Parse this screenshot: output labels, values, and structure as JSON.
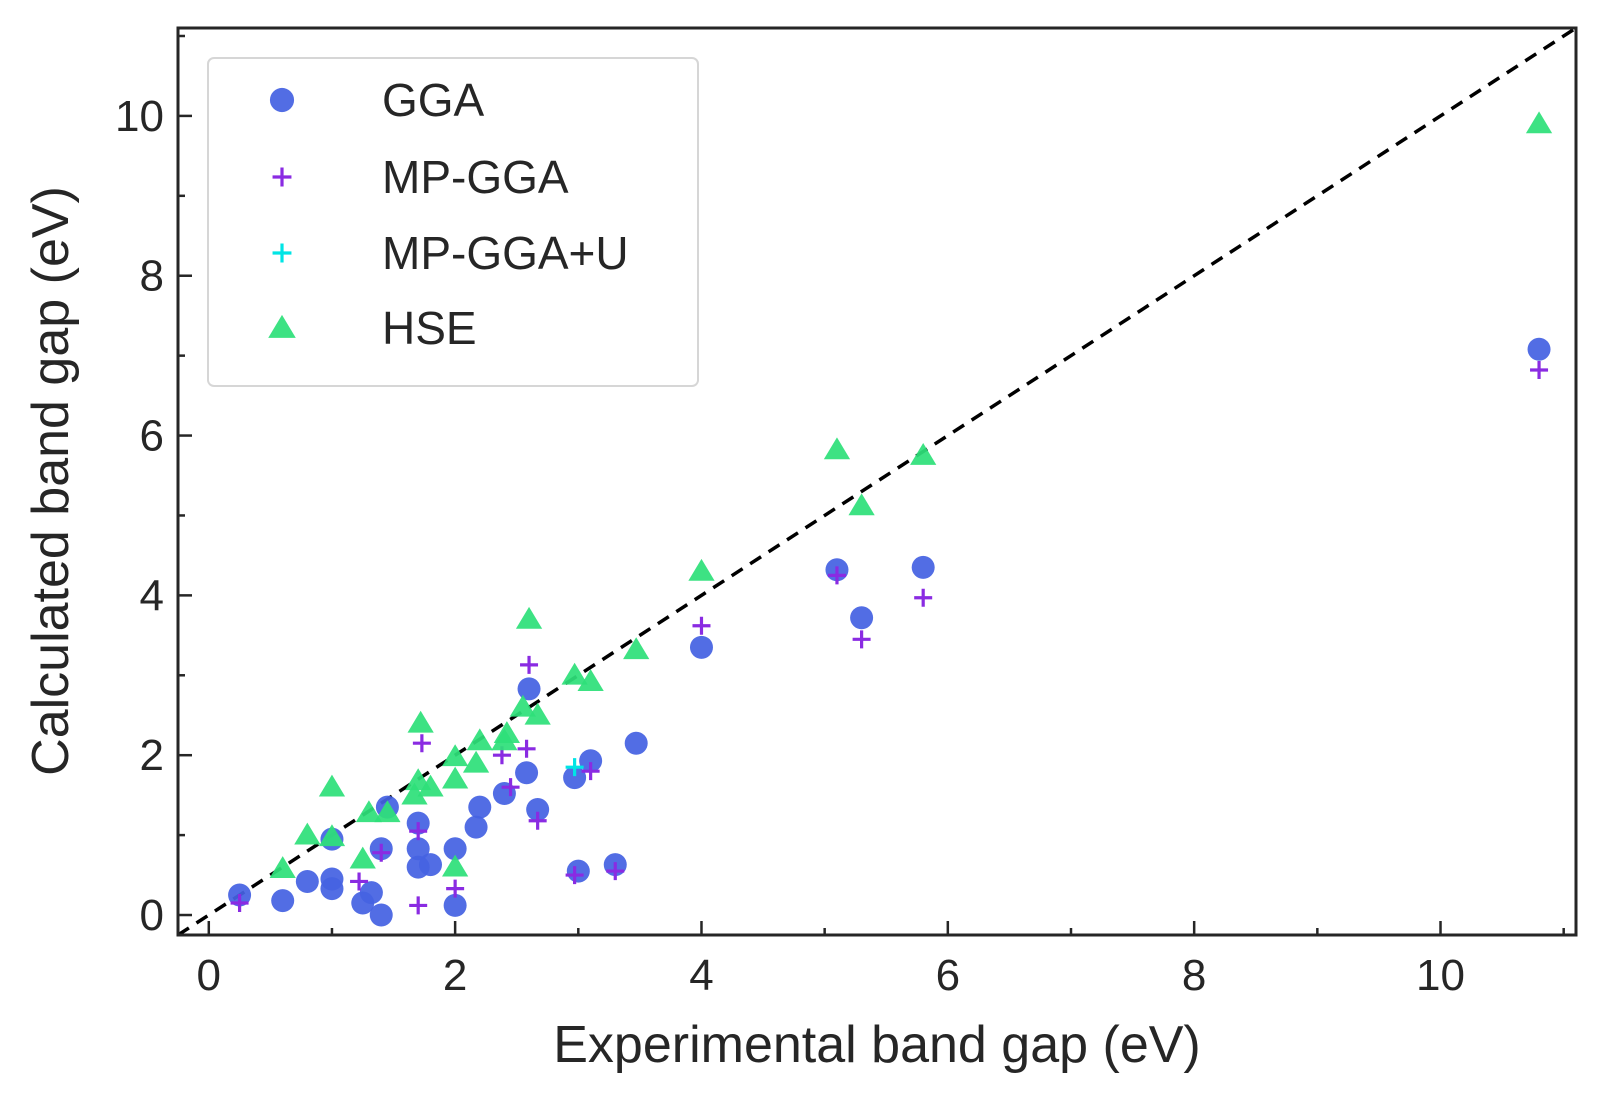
{
  "chart_data": {
    "type": "scatter",
    "title": "",
    "xlabel": "Experimental band gap (eV)",
    "ylabel": "Calculated band gap (eV)",
    "xlim": [
      -0.25,
      11.1
    ],
    "ylim": [
      -0.25,
      11.1
    ],
    "xticks": [
      0,
      2,
      4,
      6,
      8,
      10
    ],
    "yticks": [
      0,
      2,
      4,
      6,
      8,
      10
    ],
    "xtick_labels": [
      "0",
      "2",
      "4",
      "6",
      "8",
      "10"
    ],
    "ytick_labels": [
      "0",
      "2",
      "4",
      "6",
      "8",
      "10"
    ],
    "minor_tick_step": 1,
    "reference_line": {
      "style": "dashed",
      "color": "#000000",
      "from": [
        -0.25,
        -0.25
      ],
      "to": [
        11.1,
        11.1
      ]
    },
    "legend_position": "top-left",
    "series": [
      {
        "name": "GGA",
        "marker": "circle",
        "color": "#4562E2",
        "x": [
          0.25,
          0.6,
          0.8,
          1.0,
          1.0,
          1.0,
          1.25,
          1.32,
          1.4,
          1.4,
          1.45,
          1.7,
          1.7,
          1.7,
          1.8,
          2.0,
          2.0,
          2.17,
          2.2,
          2.4,
          2.58,
          2.6,
          2.67,
          2.97,
          3.0,
          3.1,
          3.3,
          3.47,
          4.0,
          5.1,
          5.3,
          5.8,
          10.8
        ],
        "y": [
          0.25,
          0.18,
          0.42,
          0.33,
          0.45,
          0.95,
          0.15,
          0.28,
          0.0,
          0.83,
          1.35,
          0.6,
          0.83,
          1.15,
          0.63,
          0.12,
          0.83,
          1.1,
          1.35,
          1.52,
          1.78,
          2.83,
          1.32,
          1.72,
          0.55,
          1.93,
          0.63,
          2.15,
          3.35,
          4.32,
          3.72,
          4.35,
          7.08
        ]
      },
      {
        "name": "MP-GGA",
        "marker": "plus",
        "color": "#8A2BE2",
        "x": [
          0.25,
          1.22,
          1.4,
          1.7,
          1.7,
          1.73,
          2.0,
          2.38,
          2.45,
          2.58,
          2.6,
          2.67,
          2.97,
          3.1,
          3.3,
          4.0,
          5.1,
          5.3,
          5.8,
          10.8
        ],
        "y": [
          0.15,
          0.42,
          0.78,
          0.12,
          1.05,
          2.15,
          0.33,
          2.0,
          1.6,
          2.08,
          3.13,
          1.18,
          0.5,
          1.8,
          0.55,
          3.62,
          4.25,
          3.45,
          3.97,
          6.82
        ]
      },
      {
        "name": "MP-GGA+U",
        "marker": "plus",
        "color": "#00E5E5",
        "x": [
          2.97
        ],
        "y": [
          1.85
        ]
      },
      {
        "name": "HSE",
        "marker": "triangle",
        "color": "#2EE07A",
        "x": [
          0.6,
          0.8,
          1.0,
          1.0,
          1.25,
          1.3,
          1.45,
          1.67,
          1.7,
          1.72,
          1.8,
          2.0,
          2.0,
          2.0,
          2.17,
          2.2,
          2.4,
          2.42,
          2.55,
          2.6,
          2.67,
          2.97,
          3.1,
          3.47,
          4.0,
          5.1,
          5.3,
          5.8,
          10.8
        ],
        "y": [
          0.58,
          1.0,
          0.98,
          1.6,
          0.7,
          1.28,
          1.28,
          1.5,
          1.68,
          2.4,
          1.6,
          0.6,
          1.7,
          1.98,
          1.9,
          2.18,
          2.18,
          2.27,
          2.6,
          3.7,
          2.5,
          3.0,
          2.92,
          3.32,
          4.3,
          5.82,
          5.12,
          5.75,
          9.9
        ]
      }
    ]
  }
}
